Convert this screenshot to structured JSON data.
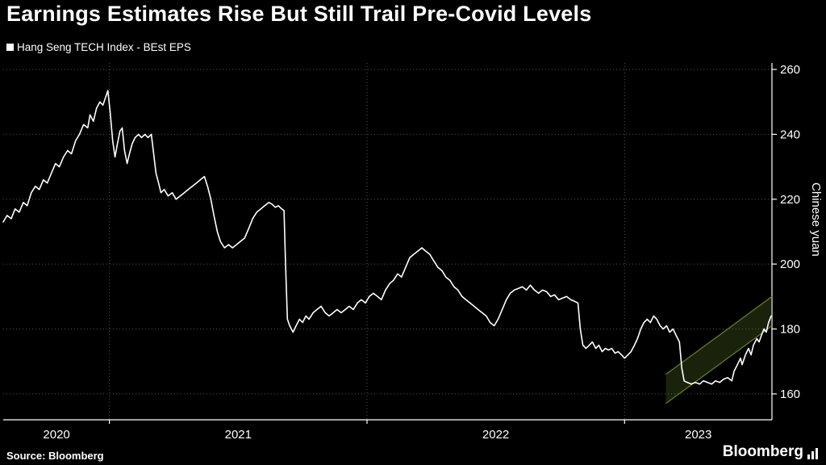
{
  "header": {
    "title": "Earnings Estimates Rise But Still Trail Pre-Covid Levels"
  },
  "legend": {
    "label": "Hang Seng TECH Index - BEst EPS"
  },
  "footer": {
    "source": "Source: Bloomberg",
    "brand": "Bloomberg"
  },
  "colors": {
    "background": "#000000",
    "line": "#ffffff",
    "grid": "#57574e",
    "axis": "#ffffff",
    "text": "#ffffff",
    "channel_stroke": "#5f7a2a",
    "channel_fill": "rgba(95,122,42,0.28)"
  },
  "chart_data": {
    "type": "line",
    "title": "Earnings Estimates Rise But Still Trail Pre-Covid Levels",
    "series_name": "Hang Seng TECH Index - BEst EPS",
    "xlabel": "",
    "ylabel": "Chinese yuan",
    "xlim": [
      2020.588,
      2023.572
    ],
    "ylim": [
      152,
      262
    ],
    "yticks": [
      160,
      180,
      200,
      220,
      240,
      260
    ],
    "x_gridlines": [
      2021,
      2022,
      2023
    ],
    "x_labels": [
      {
        "label": "2020",
        "x": 2020.795
      },
      {
        "label": "2021",
        "x": 2021.5
      },
      {
        "label": "2022",
        "x": 2022.5
      },
      {
        "label": "2023",
        "x": 2023.286
      }
    ],
    "legend_position": "top-left",
    "grid": true,
    "trend_channel": {
      "x0": 2023.16,
      "x1": 2023.572,
      "top": [
        166,
        190
      ],
      "bottom": [
        157,
        181
      ]
    },
    "points": [
      [
        2020.588,
        213
      ],
      [
        2020.603,
        215
      ],
      [
        2020.619,
        214
      ],
      [
        2020.634,
        217
      ],
      [
        2020.65,
        216
      ],
      [
        2020.666,
        219
      ],
      [
        2020.681,
        218
      ],
      [
        2020.697,
        222
      ],
      [
        2020.713,
        224
      ],
      [
        2020.728,
        223
      ],
      [
        2020.744,
        226
      ],
      [
        2020.759,
        225
      ],
      [
        2020.775,
        228
      ],
      [
        2020.791,
        231
      ],
      [
        2020.806,
        230
      ],
      [
        2020.822,
        233
      ],
      [
        2020.838,
        235
      ],
      [
        2020.853,
        234
      ],
      [
        2020.869,
        238
      ],
      [
        2020.884,
        240
      ],
      [
        2020.9,
        243
      ],
      [
        2020.916,
        242
      ],
      [
        2020.925,
        246
      ],
      [
        2020.938,
        244
      ],
      [
        2020.95,
        248
      ],
      [
        2020.963,
        250
      ],
      [
        2020.975,
        249
      ],
      [
        2020.988,
        252
      ],
      [
        2020.994,
        253.5
      ],
      [
        2021.003,
        247
      ],
      [
        2021.013,
        238
      ],
      [
        2021.022,
        233
      ],
      [
        2021.031,
        237
      ],
      [
        2021.041,
        241
      ],
      [
        2021.05,
        242
      ],
      [
        2021.059,
        235
      ],
      [
        2021.069,
        231
      ],
      [
        2021.078,
        234
      ],
      [
        2021.088,
        237
      ],
      [
        2021.1,
        239
      ],
      [
        2021.113,
        240
      ],
      [
        2021.125,
        239
      ],
      [
        2021.138,
        240
      ],
      [
        2021.15,
        239
      ],
      [
        2021.163,
        240
      ],
      [
        2021.172,
        234
      ],
      [
        2021.181,
        228
      ],
      [
        2021.191,
        225
      ],
      [
        2021.2,
        222
      ],
      [
        2021.213,
        223
      ],
      [
        2021.228,
        221
      ],
      [
        2021.244,
        222
      ],
      [
        2021.259,
        220
      ],
      [
        2021.275,
        221
      ],
      [
        2021.291,
        222
      ],
      [
        2021.306,
        223
      ],
      [
        2021.322,
        224
      ],
      [
        2021.338,
        225
      ],
      [
        2021.353,
        226
      ],
      [
        2021.369,
        227
      ],
      [
        2021.381,
        224
      ],
      [
        2021.394,
        220
      ],
      [
        2021.406,
        215
      ],
      [
        2021.419,
        210
      ],
      [
        2021.431,
        207
      ],
      [
        2021.447,
        205
      ],
      [
        2021.463,
        206
      ],
      [
        2021.478,
        205
      ],
      [
        2021.494,
        206
      ],
      [
        2021.509,
        207
      ],
      [
        2021.525,
        208
      ],
      [
        2021.541,
        211
      ],
      [
        2021.556,
        214
      ],
      [
        2021.572,
        216
      ],
      [
        2021.588,
        217
      ],
      [
        2021.603,
        218
      ],
      [
        2021.619,
        219
      ],
      [
        2021.631,
        218.5
      ],
      [
        2021.644,
        217.5
      ],
      [
        2021.656,
        218
      ],
      [
        2021.669,
        217
      ],
      [
        2021.678,
        216.5
      ],
      [
        2021.684,
        200
      ],
      [
        2021.691,
        183
      ],
      [
        2021.7,
        181
      ],
      [
        2021.713,
        179
      ],
      [
        2021.725,
        181
      ],
      [
        2021.738,
        183
      ],
      [
        2021.75,
        182
      ],
      [
        2021.763,
        184
      ],
      [
        2021.775,
        183
      ],
      [
        2021.791,
        185
      ],
      [
        2021.806,
        186
      ],
      [
        2021.822,
        187
      ],
      [
        2021.838,
        185
      ],
      [
        2021.853,
        184
      ],
      [
        2021.869,
        185
      ],
      [
        2021.884,
        186
      ],
      [
        2021.9,
        185
      ],
      [
        2021.916,
        186
      ],
      [
        2021.931,
        187
      ],
      [
        2021.947,
        186
      ],
      [
        2021.963,
        188
      ],
      [
        2021.978,
        189
      ],
      [
        2021.994,
        188
      ],
      [
        2022.009,
        190
      ],
      [
        2022.025,
        191
      ],
      [
        2022.041,
        190
      ],
      [
        2022.056,
        189
      ],
      [
        2022.072,
        192
      ],
      [
        2022.088,
        194
      ],
      [
        2022.103,
        195
      ],
      [
        2022.119,
        197
      ],
      [
        2022.134,
        196
      ],
      [
        2022.15,
        199
      ],
      [
        2022.166,
        202
      ],
      [
        2022.181,
        203
      ],
      [
        2022.197,
        204
      ],
      [
        2022.213,
        205
      ],
      [
        2022.228,
        204
      ],
      [
        2022.244,
        203
      ],
      [
        2022.259,
        201
      ],
      [
        2022.275,
        199
      ],
      [
        2022.291,
        198
      ],
      [
        2022.306,
        196
      ],
      [
        2022.322,
        195
      ],
      [
        2022.338,
        193
      ],
      [
        2022.353,
        192
      ],
      [
        2022.369,
        190
      ],
      [
        2022.384,
        189
      ],
      [
        2022.4,
        188
      ],
      [
        2022.416,
        187
      ],
      [
        2022.431,
        186
      ],
      [
        2022.447,
        185
      ],
      [
        2022.463,
        184
      ],
      [
        2022.478,
        182
      ],
      [
        2022.494,
        181
      ],
      [
        2022.509,
        183
      ],
      [
        2022.525,
        186
      ],
      [
        2022.541,
        189
      ],
      [
        2022.556,
        191
      ],
      [
        2022.572,
        192
      ],
      [
        2022.588,
        192.5
      ],
      [
        2022.603,
        193
      ],
      [
        2022.619,
        192
      ],
      [
        2022.634,
        193.5
      ],
      [
        2022.65,
        192
      ],
      [
        2022.666,
        191
      ],
      [
        2022.681,
        192
      ],
      [
        2022.697,
        191.5
      ],
      [
        2022.713,
        190
      ],
      [
        2022.728,
        190.5
      ],
      [
        2022.744,
        189
      ],
      [
        2022.759,
        189.5
      ],
      [
        2022.775,
        190
      ],
      [
        2022.791,
        189
      ],
      [
        2022.806,
        188.5
      ],
      [
        2022.819,
        188
      ],
      [
        2022.828,
        180
      ],
      [
        2022.838,
        175
      ],
      [
        2022.85,
        174
      ],
      [
        2022.863,
        175
      ],
      [
        2022.875,
        176
      ],
      [
        2022.888,
        174
      ],
      [
        2022.9,
        175
      ],
      [
        2022.913,
        173
      ],
      [
        2022.925,
        174
      ],
      [
        2022.938,
        173.5
      ],
      [
        2022.95,
        174
      ],
      [
        2022.963,
        172.5
      ],
      [
        2022.975,
        173
      ],
      [
        2022.988,
        172
      ],
      [
        2023.0,
        171
      ],
      [
        2023.013,
        172
      ],
      [
        2023.025,
        173
      ],
      [
        2023.038,
        175
      ],
      [
        2023.05,
        177
      ],
      [
        2023.063,
        180
      ],
      [
        2023.075,
        182
      ],
      [
        2023.088,
        183
      ],
      [
        2023.1,
        182
      ],
      [
        2023.113,
        184
      ],
      [
        2023.125,
        183
      ],
      [
        2023.138,
        181
      ],
      [
        2023.15,
        180
      ],
      [
        2023.163,
        181
      ],
      [
        2023.175,
        179
      ],
      [
        2023.188,
        180
      ],
      [
        2023.2,
        178
      ],
      [
        2023.213,
        176
      ],
      [
        2023.222,
        168
      ],
      [
        2023.231,
        164
      ],
      [
        2023.244,
        163.5
      ],
      [
        2023.259,
        163
      ],
      [
        2023.275,
        163.5
      ],
      [
        2023.291,
        163
      ],
      [
        2023.306,
        164
      ],
      [
        2023.322,
        163.5
      ],
      [
        2023.338,
        163
      ],
      [
        2023.353,
        164
      ],
      [
        2023.369,
        163.5
      ],
      [
        2023.384,
        164.5
      ],
      [
        2023.4,
        165
      ],
      [
        2023.416,
        164
      ],
      [
        2023.425,
        167
      ],
      [
        2023.438,
        169
      ],
      [
        2023.45,
        171
      ],
      [
        2023.456,
        169
      ],
      [
        2023.469,
        172
      ],
      [
        2023.481,
        174
      ],
      [
        2023.491,
        172
      ],
      [
        2023.5,
        175
      ],
      [
        2023.513,
        177
      ],
      [
        2023.522,
        176
      ],
      [
        2023.531,
        178
      ],
      [
        2023.541,
        180
      ],
      [
        2023.55,
        179
      ],
      [
        2023.559,
        182
      ],
      [
        2023.569,
        184
      ]
    ]
  }
}
